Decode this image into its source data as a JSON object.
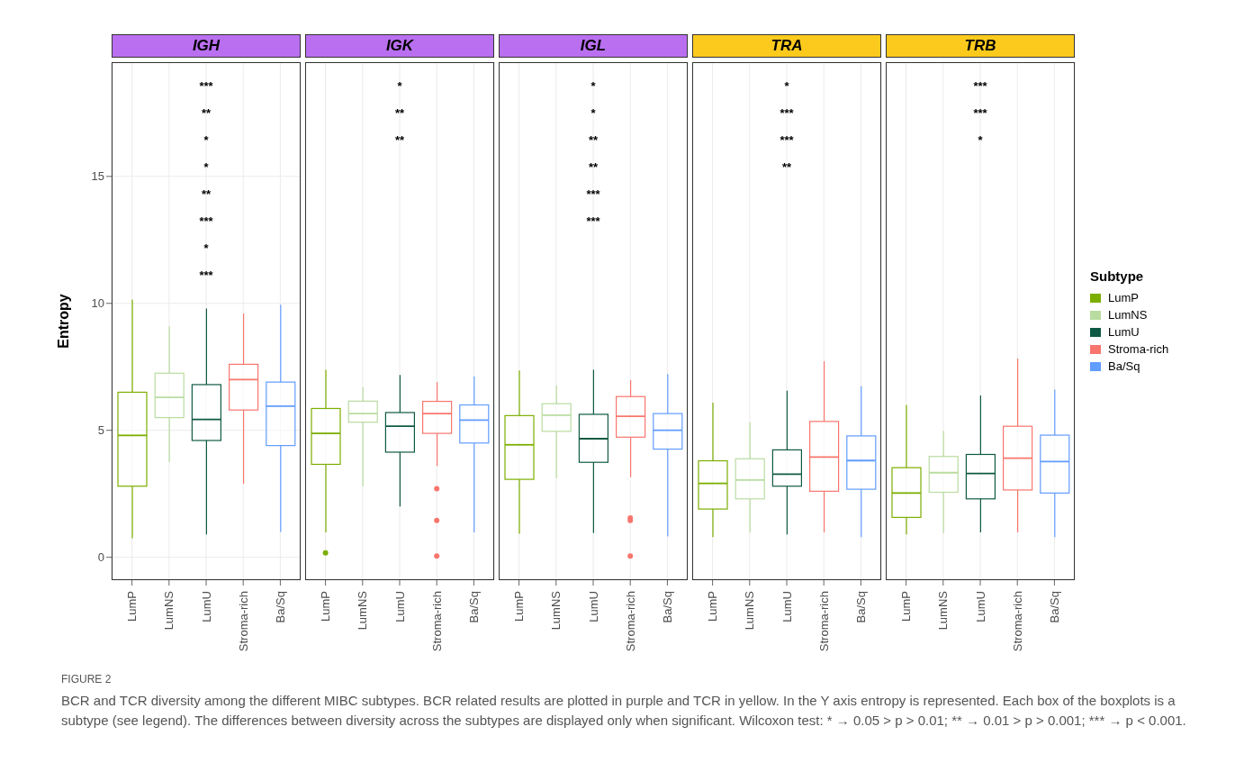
{
  "chart_data": [
    {
      "type": "box",
      "title": "IGH",
      "ylabel": "Entropy",
      "legend": "right",
      "legend_title": "Subtype",
      "categories": [
        "LumP",
        "LumNS",
        "LumU",
        "Stroma-rich",
        "Ba/Sq"
      ],
      "ylim": [
        -0.9,
        19.5
      ],
      "yticks": [
        0,
        5,
        10,
        15
      ],
      "grid": true,
      "series": [
        {
          "name": "LumP",
          "color": "#7cae00",
          "boxes": [
            {
              "low": 0.75,
              "q1": 2.8,
              "median": 4.8,
              "q3": 6.5,
              "high": 10.15
            },
            null,
            null,
            null,
            null
          ]
        },
        {
          "name": "LumNS",
          "color": "#b9dca0",
          "boxes": [
            null,
            {
              "low": 3.75,
              "q1": 5.5,
              "median": 6.3,
              "q3": 7.25,
              "high": 9.1
            },
            null,
            null,
            null
          ]
        },
        {
          "name": "LumU",
          "color": "#0f5a44",
          "boxes": [
            null,
            null,
            {
              "low": 0.9,
              "q1": 4.6,
              "median": 5.43,
              "q3": 6.8,
              "high": 9.8
            },
            null,
            null
          ]
        },
        {
          "name": "Stroma-rich",
          "color": "#f8766d",
          "boxes": [
            null,
            null,
            null,
            {
              "low": 2.9,
              "q1": 5.8,
              "median": 7.0,
              "q3": 7.6,
              "high": 9.6
            },
            null
          ]
        },
        {
          "name": "Ba/Sq",
          "color": "#619cff",
          "boxes": [
            null,
            null,
            null,
            null,
            {
              "low": 1.0,
              "q1": 4.4,
              "median": 5.95,
              "q3": 6.9,
              "high": 9.95
            }
          ]
        }
      ],
      "annotations": [
        "***",
        "**",
        "*",
        "*",
        "**",
        "***",
        "*",
        "***"
      ]
    },
    {
      "type": "box",
      "title": "IGK",
      "categories": [
        "LumP",
        "LumNS",
        "LumU",
        "Stroma-rich",
        "Ba/Sq"
      ],
      "ylim": [
        -0.9,
        19.5
      ],
      "yticks": [
        0,
        5,
        10,
        15
      ],
      "grid": true,
      "tick_labels": "x",
      "series": [
        {
          "color": "#7cae00",
          "boxes": [
            {
              "low": 0.98,
              "q1": 3.66,
              "median": 4.88,
              "q3": 5.86,
              "high": 7.38,
              "outliers": [
                0.17
              ]
            },
            null,
            null,
            null,
            null
          ]
        },
        {
          "color": "#b9dca0",
          "boxes": [
            null,
            {
              "low": 2.8,
              "q1": 5.32,
              "median": 5.66,
              "q3": 6.15,
              "high": 6.7
            },
            null,
            null,
            null
          ]
        },
        {
          "color": "#0f5a44",
          "boxes": [
            null,
            null,
            {
              "low": 2.0,
              "q1": 4.14,
              "median": 5.16,
              "q3": 5.7,
              "high": 7.18
            },
            null,
            null
          ]
        },
        {
          "color": "#f8766d",
          "boxes": [
            null,
            null,
            null,
            {
              "low": 3.6,
              "q1": 4.88,
              "median": 5.66,
              "q3": 6.14,
              "high": 6.9,
              "outliers": [
                2.7,
                1.45,
                0.05
              ]
            },
            null
          ]
        },
        {
          "color": "#619cff",
          "boxes": [
            null,
            null,
            null,
            null,
            {
              "low": 0.98,
              "q1": 4.5,
              "median": 5.4,
              "q3": 6.0,
              "high": 7.13
            }
          ]
        }
      ],
      "annotations": [
        "*",
        "**",
        "**"
      ]
    },
    {
      "type": "box",
      "title": "IGL",
      "categories": [
        "LumP",
        "LumNS",
        "LumU",
        "Stroma-rich",
        "Ba/Sq"
      ],
      "ylim": [
        -0.9,
        19.5
      ],
      "yticks": [
        0,
        5,
        10,
        15
      ],
      "grid": true,
      "tick_labels": "x",
      "series": [
        {
          "color": "#7cae00",
          "boxes": [
            {
              "low": 0.93,
              "q1": 3.07,
              "median": 4.43,
              "q3": 5.58,
              "high": 7.36
            },
            null,
            null,
            null,
            null
          ]
        },
        {
          "color": "#b9dca0",
          "boxes": [
            null,
            {
              "low": 3.12,
              "q1": 4.96,
              "median": 5.6,
              "q3": 6.05,
              "high": 6.76
            },
            null,
            null,
            null
          ]
        },
        {
          "color": "#0f5a44",
          "boxes": [
            null,
            null,
            {
              "low": 0.95,
              "q1": 3.74,
              "median": 4.67,
              "q3": 5.63,
              "high": 7.38
            },
            null,
            null
          ]
        },
        {
          "color": "#f8766d",
          "boxes": [
            null,
            null,
            null,
            {
              "low": 3.15,
              "q1": 4.73,
              "median": 5.55,
              "q3": 6.33,
              "high": 6.98,
              "outliers": [
                1.55,
                1.45,
                0.05
              ]
            },
            null
          ]
        },
        {
          "color": "#619cff",
          "boxes": [
            null,
            null,
            null,
            null,
            {
              "low": 0.82,
              "q1": 4.26,
              "median": 5.0,
              "q3": 5.66,
              "high": 7.22
            }
          ]
        }
      ],
      "annotations": [
        "*",
        "*",
        "**",
        "**",
        "***",
        "***"
      ]
    },
    {
      "type": "box",
      "title": "TRA",
      "categories": [
        "LumP",
        "LumNS",
        "LumU",
        "Stroma-rich",
        "Ba/Sq"
      ],
      "ylim": [
        -0.9,
        19.5
      ],
      "yticks": [
        0,
        5,
        10,
        15
      ],
      "grid": true,
      "tick_labels": "x",
      "series": [
        {
          "color": "#7cae00",
          "boxes": [
            {
              "low": 0.79,
              "q1": 1.9,
              "median": 2.91,
              "q3": 3.8,
              "high": 6.09
            },
            null,
            null,
            null,
            null
          ]
        },
        {
          "color": "#b9dca0",
          "boxes": [
            null,
            {
              "low": 0.98,
              "q1": 2.3,
              "median": 3.04,
              "q3": 3.88,
              "high": 5.32
            },
            null,
            null,
            null
          ]
        },
        {
          "color": "#0f5a44",
          "boxes": [
            null,
            null,
            {
              "low": 0.9,
              "q1": 2.8,
              "median": 3.27,
              "q3": 4.23,
              "high": 6.56
            },
            null,
            null
          ]
        },
        {
          "color": "#f8766d",
          "boxes": [
            null,
            null,
            null,
            {
              "low": 0.98,
              "q1": 2.6,
              "median": 3.95,
              "q3": 5.35,
              "high": 7.72
            },
            null
          ]
        },
        {
          "color": "#619cff",
          "boxes": [
            null,
            null,
            null,
            null,
            {
              "low": 0.79,
              "q1": 2.68,
              "median": 3.81,
              "q3": 4.78,
              "high": 6.74
            }
          ]
        }
      ],
      "annotations": [
        "*",
        "***",
        "***",
        "**"
      ]
    },
    {
      "type": "box",
      "title": "TRB",
      "categories": [
        "LumP",
        "LumNS",
        "LumU",
        "Stroma-rich",
        "Ba/Sq"
      ],
      "ylim": [
        -0.9,
        19.5
      ],
      "yticks": [
        0,
        5,
        10,
        15
      ],
      "grid": true,
      "tick_labels": "x",
      "series": [
        {
          "color": "#7cae00",
          "boxes": [
            {
              "low": 0.9,
              "q1": 1.57,
              "median": 2.53,
              "q3": 3.53,
              "high": 6.0
            },
            null,
            null,
            null,
            null
          ]
        },
        {
          "color": "#b9dca0",
          "boxes": [
            null,
            {
              "low": 0.95,
              "q1": 2.56,
              "median": 3.33,
              "q3": 3.97,
              "high": 4.98
            },
            null,
            null,
            null
          ]
        },
        {
          "color": "#0f5a44",
          "boxes": [
            null,
            null,
            {
              "low": 0.98,
              "q1": 2.3,
              "median": 3.3,
              "q3": 4.05,
              "high": 6.37
            },
            null,
            null
          ]
        },
        {
          "color": "#f8766d",
          "boxes": [
            null,
            null,
            null,
            {
              "low": 0.98,
              "q1": 2.65,
              "median": 3.9,
              "q3": 5.16,
              "high": 7.83
            },
            null
          ]
        },
        {
          "color": "#619cff",
          "boxes": [
            null,
            null,
            null,
            null,
            {
              "low": 0.79,
              "q1": 2.53,
              "median": 3.77,
              "q3": 4.81,
              "high": 6.6
            }
          ]
        }
      ],
      "annotations": [
        "***",
        "***",
        "*"
      ]
    },
    {
      "type": "other",
      "title": "FIGURE 2",
      "subtitle": "BCR and TCR diversity among the different MIBC subtypes. BCR related results are plotted in purple and TCR in yellow. In the Y axis entropy is represented. Each box of the boxplots is a subtype (see legend). The differences between diversity across the subtypes are displayed only when significant. Wilcoxon test: * → 0.05 > p > 0.01; ** → 0.01 > p > 0.001; *** → p < 0.001."
    }
  ]
}
